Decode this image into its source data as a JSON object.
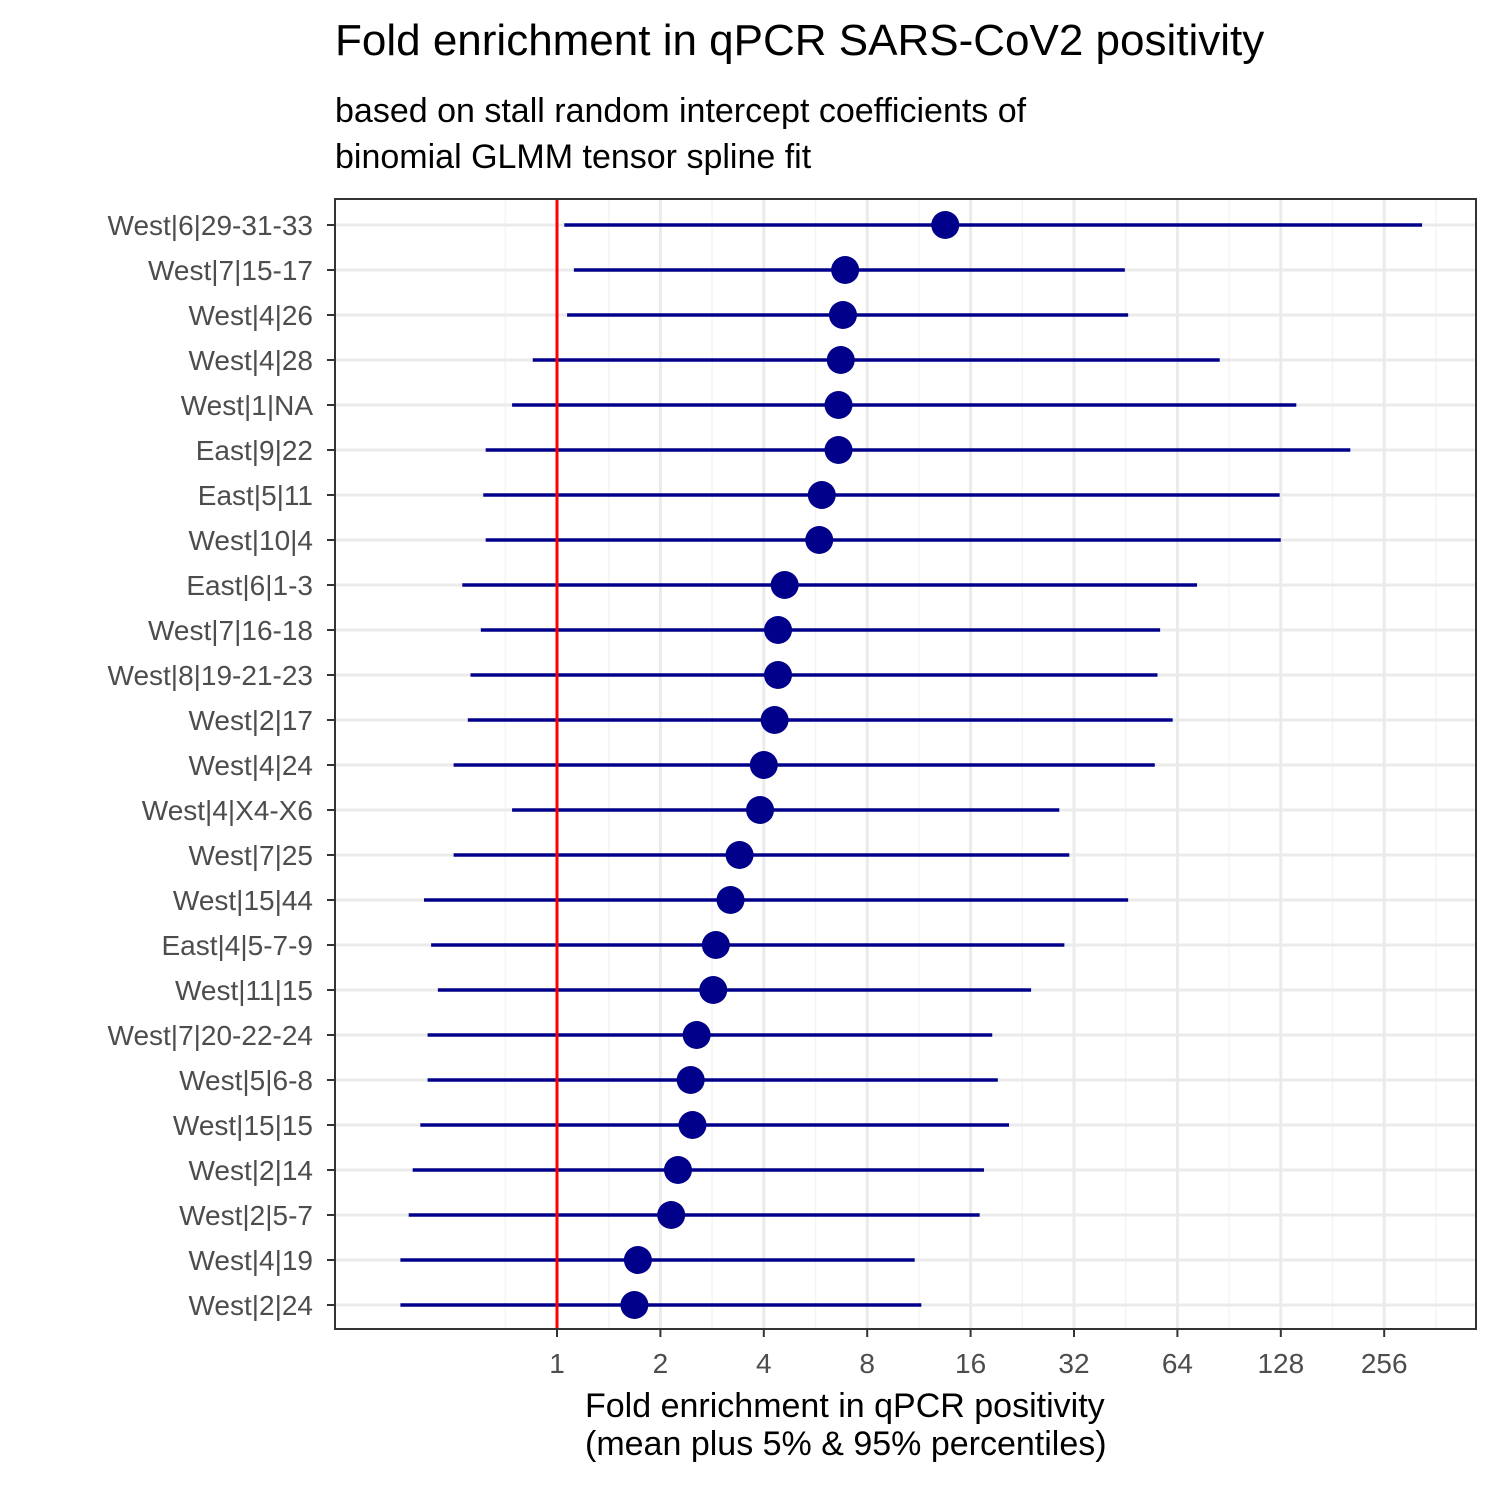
{
  "title": "Fold enrichment in qPCR SARS-CoV2 positivity",
  "subtitle": "based on stall random intercept coefficients of\nbinomial GLMM tensor spline fit",
  "x_axis_label_line1": "Fold enrichment in qPCR positivity",
  "x_axis_label_line2": "(mean plus 5% & 95% percentiles)",
  "colors": {
    "point": "#00008B",
    "interval": "#00008B",
    "reference_line": "#FF0000",
    "grid_major": "#EBEBEB",
    "grid_minor": "#F4F4F4",
    "panel_border": "#333333",
    "tick_label": "#4D4D4D"
  },
  "chart_data": {
    "type": "scatter",
    "subtype": "forest-plot",
    "x_scale": "log2",
    "x_ticks": [
      1,
      2,
      4,
      8,
      16,
      32,
      64,
      128,
      256
    ],
    "x_tick_labels": [
      "1",
      "2",
      "4",
      "8",
      "16",
      "32",
      "64",
      "128",
      "256"
    ],
    "xlim": [
      0.34,
      430
    ],
    "reference_line_x": 1,
    "grid": true,
    "rows": [
      {
        "label": "West|6|29-31-33",
        "mean": 13.5,
        "lower": 1.05,
        "upper": 330
      },
      {
        "label": "West|7|15-17",
        "mean": 6.9,
        "lower": 1.12,
        "upper": 45
      },
      {
        "label": "West|4|26",
        "mean": 6.8,
        "lower": 1.07,
        "upper": 46
      },
      {
        "label": "West|4|28",
        "mean": 6.7,
        "lower": 0.85,
        "upper": 85
      },
      {
        "label": "West|1|NA",
        "mean": 6.6,
        "lower": 0.74,
        "upper": 142
      },
      {
        "label": "East|9|22",
        "mean": 6.6,
        "lower": 0.62,
        "upper": 204
      },
      {
        "label": "East|5|11",
        "mean": 5.9,
        "lower": 0.61,
        "upper": 127
      },
      {
        "label": "West|10|4",
        "mean": 5.8,
        "lower": 0.62,
        "upper": 128
      },
      {
        "label": "East|6|1-3",
        "mean": 4.6,
        "lower": 0.53,
        "upper": 73
      },
      {
        "label": "West|7|16-18",
        "mean": 4.4,
        "lower": 0.6,
        "upper": 57
      },
      {
        "label": "West|8|19-21-23",
        "mean": 4.4,
        "lower": 0.56,
        "upper": 56
      },
      {
        "label": "West|2|17",
        "mean": 4.3,
        "lower": 0.55,
        "upper": 62
      },
      {
        "label": "West|4|24",
        "mean": 4.0,
        "lower": 0.5,
        "upper": 55
      },
      {
        "label": "West|4|X4-X6",
        "mean": 3.9,
        "lower": 0.74,
        "upper": 29
      },
      {
        "label": "West|7|25",
        "mean": 3.4,
        "lower": 0.5,
        "upper": 31
      },
      {
        "label": "West|15|44",
        "mean": 3.2,
        "lower": 0.41,
        "upper": 46
      },
      {
        "label": "East|4|5-7-9",
        "mean": 2.9,
        "lower": 0.43,
        "upper": 30
      },
      {
        "label": "West|11|15",
        "mean": 2.85,
        "lower": 0.45,
        "upper": 24
      },
      {
        "label": "West|7|20-22-24",
        "mean": 2.55,
        "lower": 0.42,
        "upper": 18.5
      },
      {
        "label": "West|5|6-8",
        "mean": 2.45,
        "lower": 0.42,
        "upper": 19.2
      },
      {
        "label": "West|15|15",
        "mean": 2.48,
        "lower": 0.4,
        "upper": 20.7
      },
      {
        "label": "West|2|14",
        "mean": 2.25,
        "lower": 0.38,
        "upper": 17.5
      },
      {
        "label": "West|2|5-7",
        "mean": 2.15,
        "lower": 0.37,
        "upper": 17
      },
      {
        "label": "West|4|19",
        "mean": 1.72,
        "lower": 0.35,
        "upper": 11
      },
      {
        "label": "West|2|24",
        "mean": 1.68,
        "lower": 0.35,
        "upper": 11.5
      }
    ]
  }
}
